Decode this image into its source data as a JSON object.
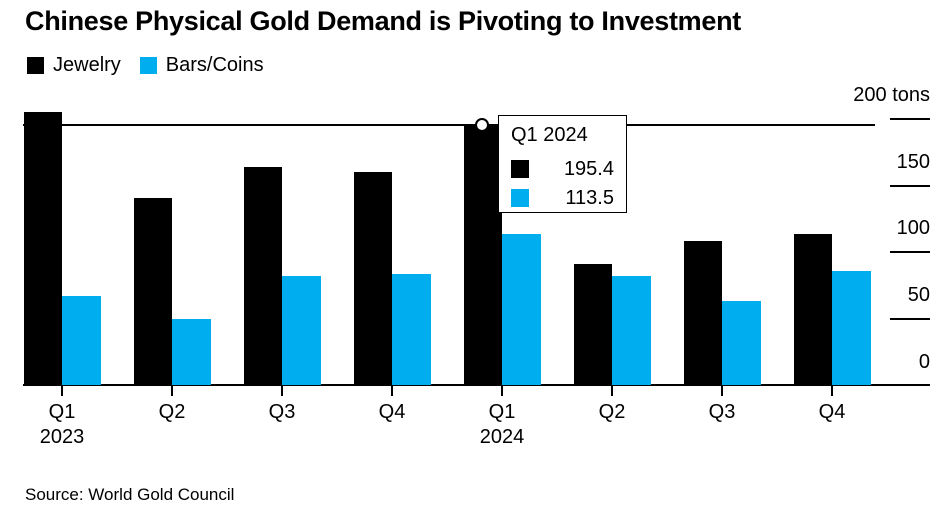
{
  "title": "Chinese Physical Gold Demand is Pivoting to Investment",
  "source": "Source: World Gold Council",
  "chart_data": {
    "type": "bar",
    "title": "Chinese Physical Gold Demand is Pivoting to Investment",
    "unit": "tons",
    "grid": false,
    "legend_position": "top-left",
    "ylim": [
      0,
      207
    ],
    "categories": [
      {
        "id": "q1-2023",
        "line1": "Q1",
        "line2": "2023"
      },
      {
        "id": "q2-2023",
        "line1": "Q2",
        "line2": ""
      },
      {
        "id": "q3-2023",
        "line1": "Q3",
        "line2": ""
      },
      {
        "id": "q4-2023",
        "line1": "Q4",
        "line2": ""
      },
      {
        "id": "q1-2024",
        "line1": "Q1",
        "line2": "2024"
      },
      {
        "id": "q2-2024",
        "line1": "Q2",
        "line2": ""
      },
      {
        "id": "q3-2024",
        "line1": "Q3",
        "line2": ""
      },
      {
        "id": "q4-2024",
        "line1": "Q4",
        "line2": ""
      }
    ],
    "series": [
      {
        "name": "Jewelry",
        "color": "#000000",
        "values": [
          205.0,
          140.5,
          164.0,
          160.0,
          195.4,
          91.5,
          108.5,
          114.0
        ]
      },
      {
        "name": "Bars/Coins",
        "color": "#00aeef",
        "values": [
          67.5,
          50.0,
          82.5,
          84.0,
          113.5,
          82.0,
          63.5,
          86.0
        ]
      }
    ],
    "y_axis": [
      {
        "value": 0,
        "label": "0"
      },
      {
        "value": 50,
        "label": "50"
      },
      {
        "value": 100,
        "label": "100"
      },
      {
        "value": 150,
        "label": "150"
      },
      {
        "value": 200,
        "label": "200 tons"
      }
    ]
  },
  "annotation": {
    "category": "Q1 2024",
    "category_index": 4,
    "series": "Jewelry",
    "value": 195.4,
    "marker": "circle-on-bar-top",
    "reference_line": true
  },
  "tooltip": {
    "title": "Q1 2024",
    "rows": [
      {
        "series": "Jewelry",
        "color": "#000000",
        "value": "195.4"
      },
      {
        "series": "Bars/Coins",
        "color": "#00aeef",
        "value": "113.5"
      }
    ]
  }
}
